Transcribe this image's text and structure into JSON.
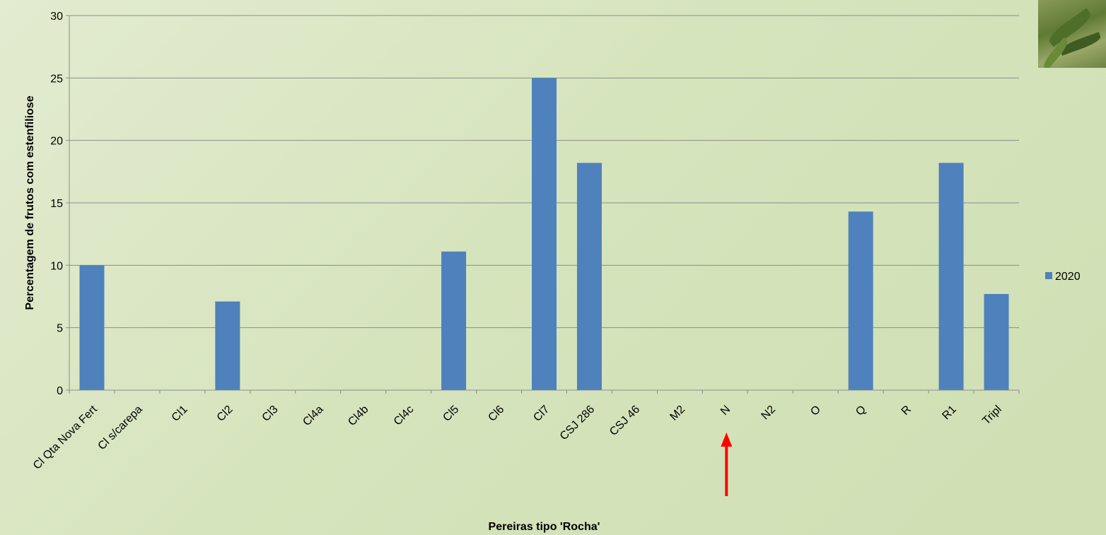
{
  "chart_data": {
    "type": "bar",
    "categories": [
      "Cl Qta Nova Fert",
      "Cl s/carepa",
      "Cl1",
      "Cl2",
      "Cl3",
      "Cl4a",
      "Cl4b",
      "Cl4c",
      "Cl5",
      "Cl6",
      "Cl7",
      "CSJ 286",
      "CSJ 46",
      "M2",
      "N",
      "N2",
      "O",
      "Q",
      "R",
      "R1",
      "Tripl"
    ],
    "series": [
      {
        "name": "2020",
        "color": "#4f81bd",
        "values": [
          10,
          0,
          0,
          7.1,
          0,
          0,
          0,
          0,
          11.1,
          0,
          25,
          18.2,
          0,
          0,
          0,
          0,
          0,
          14.3,
          0,
          18.2,
          7.7
        ]
      }
    ],
    "xlabel": "Pereiras tipo 'Rocha'",
    "ylabel": "Percentagem de frutos com estenfiliose",
    "ylim": [
      0,
      30
    ],
    "yticks": [
      0,
      5,
      10,
      15,
      20,
      25,
      30
    ],
    "grid": "horizontal",
    "legend_position": "right",
    "annotation": {
      "type": "arrow",
      "target_category": "N",
      "color": "#ff0000"
    }
  }
}
